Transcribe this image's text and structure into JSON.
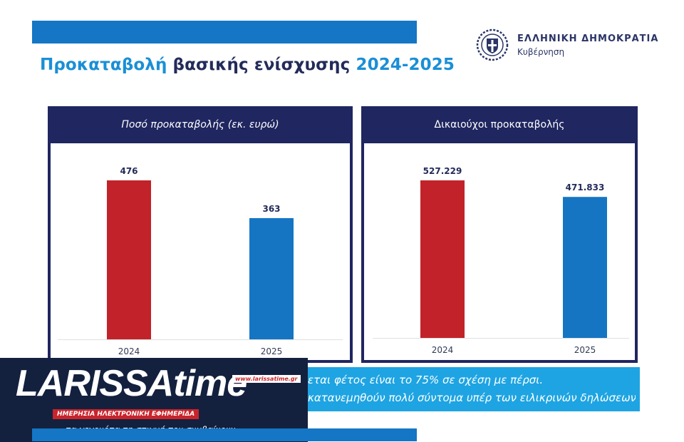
{
  "header": {
    "title_part1": "Προκαταβολή",
    "title_part2": " βασικής ενίσχυσης ",
    "title_part3": "2024-2025"
  },
  "government": {
    "name": "ΕΛΛΗΝΙΚΗ ΔΗΜΟΚΡΑΤΙΑ",
    "subtitle": "Κυβέρνηση",
    "emblem_icon": "greek-coat-of-arms-icon"
  },
  "colors": {
    "navy": "#1f2660",
    "bar_2024": "#c22229",
    "bar_2025": "#1575c3",
    "accent": "#1a8fd6"
  },
  "chart_data": [
    {
      "type": "bar",
      "title": "Ποσό προκαταβολής (εκ. ευρώ)",
      "categories": [
        "2024",
        "2025"
      ],
      "values": [
        476,
        363
      ],
      "value_labels": [
        "476",
        "363"
      ],
      "ylim": [
        0,
        476
      ],
      "grid": false,
      "legend": "none"
    },
    {
      "type": "bar",
      "title": "Δικαιούχοι προκαταβολής",
      "categories": [
        "2024",
        "2025"
      ],
      "values": [
        527229,
        471833
      ],
      "value_labels": [
        "527.229",
        "471.833"
      ],
      "ylim": [
        0,
        527229
      ],
      "grid": false,
      "legend": "none"
    }
  ],
  "note": {
    "line1": "εται φέτος είναι το 75% σε σχέση με πέρσι.",
    "line2": "κατανεμηθούν πολύ σύντομα υπέρ των ειλικρινών δηλώσεων"
  },
  "logo": {
    "word": "LARISSA",
    "word2": "time",
    "url": "www.larissatime.gr",
    "strap": "ΗΜΕΡΗΣΙΑ ΗΛΕΚΤΡΟΝΙΚΗ ΕΦΗΜΕΡΙΔΑ",
    "slogan": "τα γεγονότα τη στιγμή που συμβαίνουν"
  }
}
